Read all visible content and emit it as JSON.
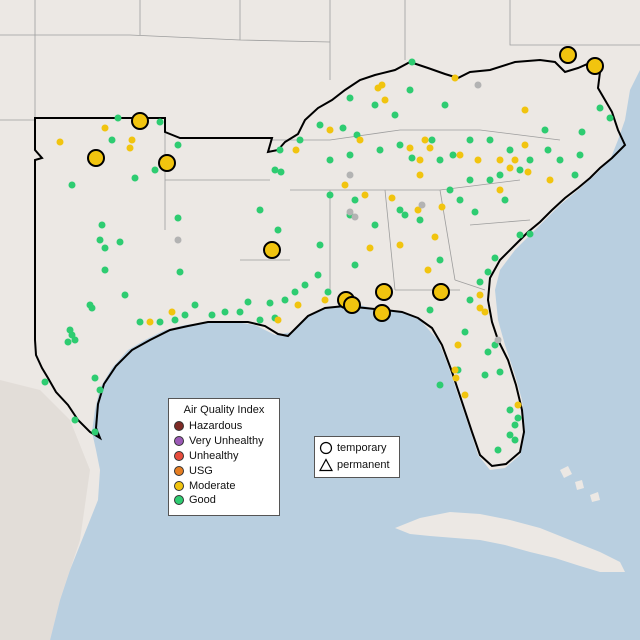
{
  "map": {
    "colors": {
      "ocean": "#b9cfe0",
      "land": "#ece8e4",
      "land_shade": "#dcd6d0",
      "state_line": "#9d9d9d",
      "region_border": "#000000"
    },
    "region": "Southeastern United States and Texas (with Oklahoma, Arkansas, Louisiana, Mississippi, Alabama, Georgia, Florida, Tennessee, Kentucky, South Carolina, North Carolina, Virginia)"
  },
  "legend": {
    "title": "Air Quality Index",
    "items": [
      {
        "label": "Hazardous",
        "color": "#7e2b25"
      },
      {
        "label": "Very Unhealthy",
        "color": "#9b59b6"
      },
      {
        "label": "Unhealthy",
        "color": "#e74c3c"
      },
      {
        "label": "USG",
        "color": "#e67e22"
      },
      {
        "label": "Moderate",
        "color": "#f1c40f"
      },
      {
        "label": "Good",
        "color": "#2ecc71"
      }
    ]
  },
  "type_legend": {
    "items": [
      {
        "label": "temporary",
        "shape": "circle-icon"
      },
      {
        "label": "permanent",
        "shape": "triangle-icon"
      }
    ]
  }
}
